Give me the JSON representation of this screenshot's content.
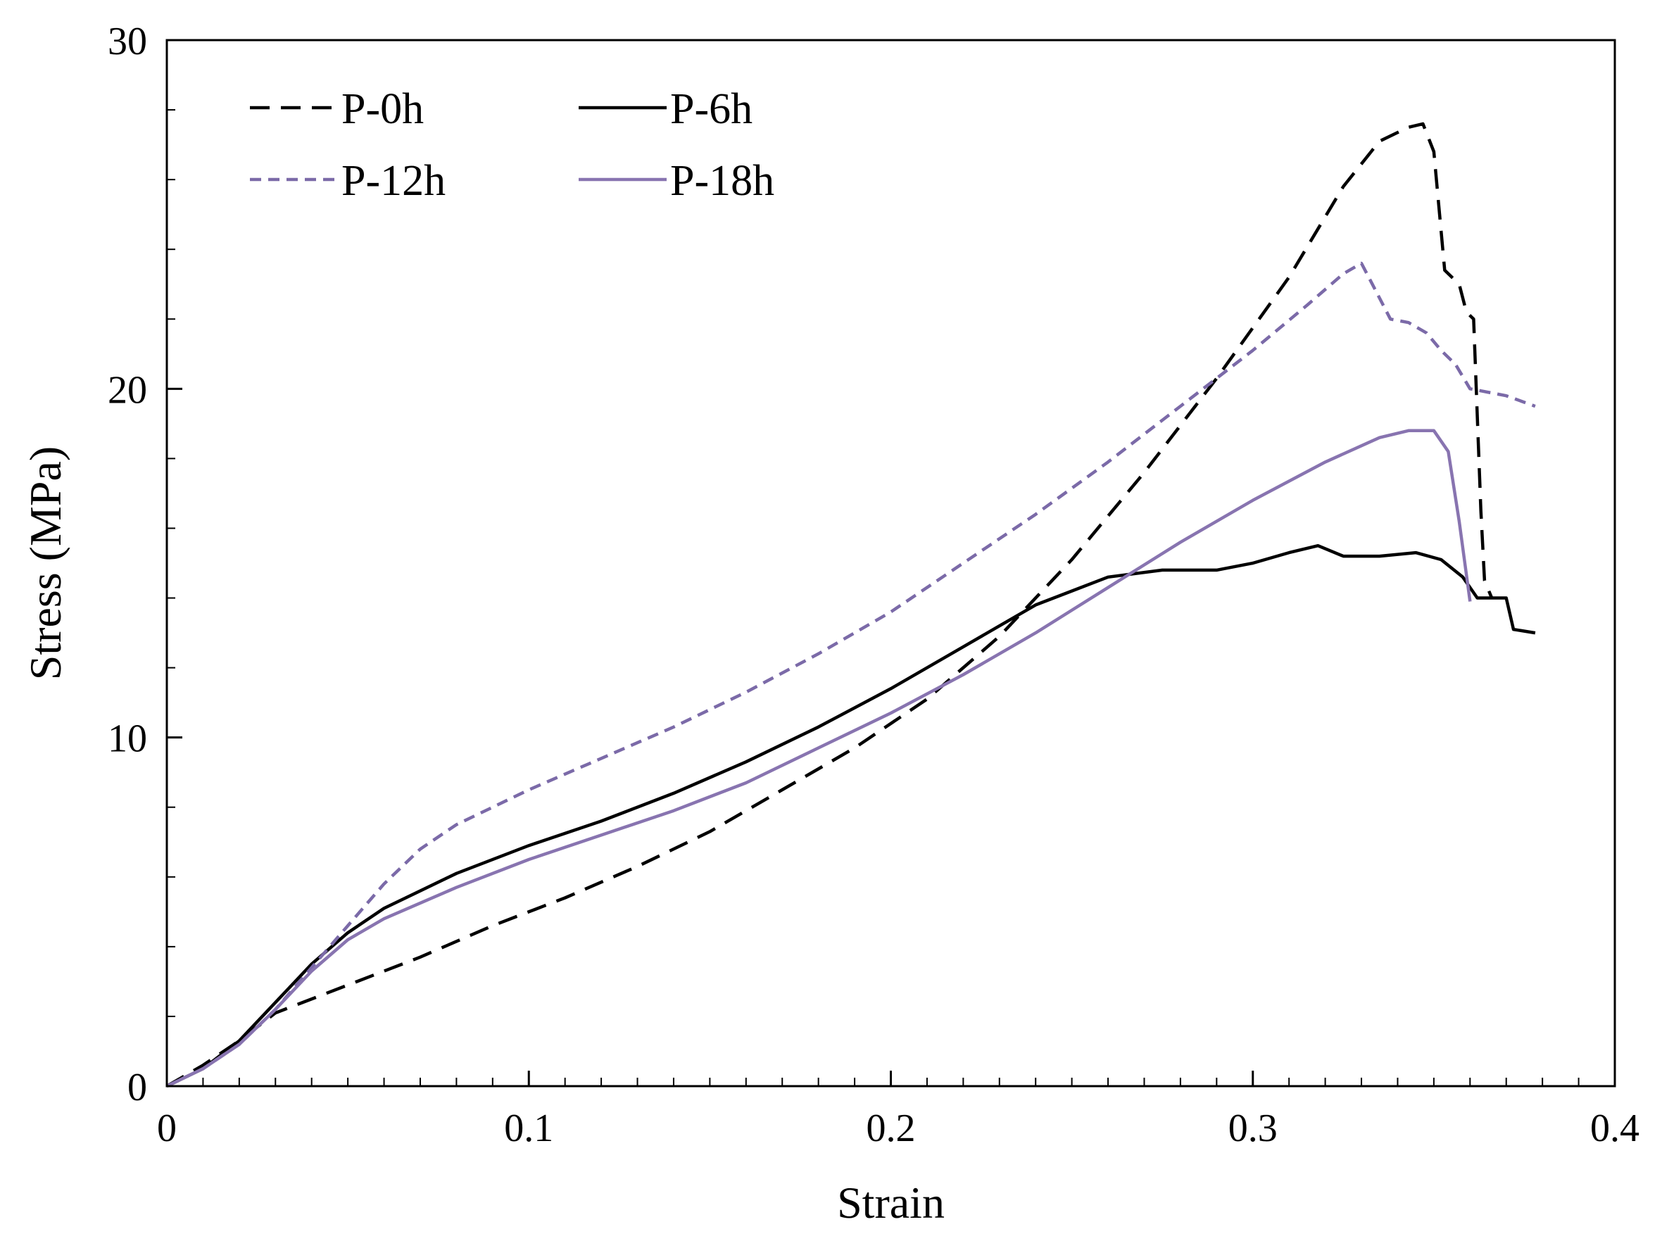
{
  "chart_data": {
    "type": "line",
    "title": "",
    "xlabel": "Strain",
    "ylabel": "Stress (MPa)",
    "xlim": [
      0,
      0.4
    ],
    "ylim": [
      0,
      30
    ],
    "x_ticks": [
      {
        "value": 0,
        "label": "0"
      },
      {
        "value": 0.1,
        "label": "0.1"
      },
      {
        "value": 0.2,
        "label": "0.2"
      },
      {
        "value": 0.3,
        "label": "0.3"
      },
      {
        "value": 0.4,
        "label": "0.4"
      }
    ],
    "y_ticks": [
      {
        "value": 0,
        "label": "0"
      },
      {
        "value": 10,
        "label": "10"
      },
      {
        "value": 20,
        "label": "20"
      },
      {
        "value": 30,
        "label": "30"
      }
    ],
    "x_minor_step": 0.01,
    "y_minor_step": 2,
    "grid": false,
    "legend_position": "top-left",
    "series": [
      {
        "name": "P-0h",
        "color": "#000000",
        "style": "dashed",
        "points": [
          [
            0,
            0
          ],
          [
            0.01,
            0.6
          ],
          [
            0.02,
            1.3
          ],
          [
            0.03,
            2.1
          ],
          [
            0.05,
            2.9
          ],
          [
            0.07,
            3.7
          ],
          [
            0.09,
            4.6
          ],
          [
            0.11,
            5.4
          ],
          [
            0.13,
            6.3
          ],
          [
            0.15,
            7.3
          ],
          [
            0.17,
            8.5
          ],
          [
            0.19,
            9.7
          ],
          [
            0.21,
            11.1
          ],
          [
            0.23,
            12.9
          ],
          [
            0.25,
            15.1
          ],
          [
            0.27,
            17.6
          ],
          [
            0.29,
            20.3
          ],
          [
            0.31,
            23.2
          ],
          [
            0.325,
            25.8
          ],
          [
            0.335,
            27.1
          ],
          [
            0.343,
            27.5
          ],
          [
            0.347,
            27.6
          ],
          [
            0.35,
            26.8
          ],
          [
            0.353,
            23.4
          ],
          [
            0.357,
            23.0
          ],
          [
            0.359,
            22.2
          ],
          [
            0.361,
            22.0
          ],
          [
            0.363,
            16.5
          ],
          [
            0.364,
            14.5
          ],
          [
            0.366,
            14.0
          ]
        ]
      },
      {
        "name": "P-6h",
        "color": "#000000",
        "style": "solid",
        "points": [
          [
            0,
            0
          ],
          [
            0.01,
            0.5
          ],
          [
            0.02,
            1.3
          ],
          [
            0.03,
            2.4
          ],
          [
            0.04,
            3.5
          ],
          [
            0.05,
            4.4
          ],
          [
            0.06,
            5.1
          ],
          [
            0.08,
            6.1
          ],
          [
            0.1,
            6.9
          ],
          [
            0.12,
            7.6
          ],
          [
            0.14,
            8.4
          ],
          [
            0.16,
            9.3
          ],
          [
            0.18,
            10.3
          ],
          [
            0.2,
            11.4
          ],
          [
            0.22,
            12.6
          ],
          [
            0.24,
            13.8
          ],
          [
            0.26,
            14.6
          ],
          [
            0.275,
            14.8
          ],
          [
            0.29,
            14.8
          ],
          [
            0.3,
            15.0
          ],
          [
            0.31,
            15.3
          ],
          [
            0.318,
            15.5
          ],
          [
            0.325,
            15.2
          ],
          [
            0.335,
            15.2
          ],
          [
            0.345,
            15.3
          ],
          [
            0.352,
            15.1
          ],
          [
            0.358,
            14.6
          ],
          [
            0.362,
            14.0
          ],
          [
            0.37,
            14.0
          ],
          [
            0.372,
            13.1
          ],
          [
            0.378,
            13.0
          ]
        ]
      },
      {
        "name": "P-12h",
        "color": "#7b6aa8",
        "style": "dashed",
        "points": [
          [
            0,
            0
          ],
          [
            0.01,
            0.5
          ],
          [
            0.02,
            1.2
          ],
          [
            0.03,
            2.2
          ],
          [
            0.04,
            3.4
          ],
          [
            0.05,
            4.6
          ],
          [
            0.06,
            5.8
          ],
          [
            0.07,
            6.8
          ],
          [
            0.08,
            7.5
          ],
          [
            0.1,
            8.5
          ],
          [
            0.12,
            9.4
          ],
          [
            0.14,
            10.3
          ],
          [
            0.16,
            11.3
          ],
          [
            0.18,
            12.4
          ],
          [
            0.2,
            13.6
          ],
          [
            0.22,
            15.0
          ],
          [
            0.24,
            16.4
          ],
          [
            0.26,
            17.9
          ],
          [
            0.28,
            19.5
          ],
          [
            0.3,
            21.1
          ],
          [
            0.315,
            22.4
          ],
          [
            0.325,
            23.3
          ],
          [
            0.33,
            23.6
          ],
          [
            0.333,
            23.0
          ],
          [
            0.338,
            22.0
          ],
          [
            0.343,
            21.9
          ],
          [
            0.348,
            21.6
          ],
          [
            0.352,
            21.1
          ],
          [
            0.356,
            20.7
          ],
          [
            0.36,
            20.0
          ],
          [
            0.37,
            19.8
          ],
          [
            0.378,
            19.5
          ]
        ]
      },
      {
        "name": "P-18h",
        "color": "#8874b0",
        "style": "solid",
        "points": [
          [
            0,
            0
          ],
          [
            0.01,
            0.5
          ],
          [
            0.02,
            1.2
          ],
          [
            0.03,
            2.2
          ],
          [
            0.04,
            3.3
          ],
          [
            0.05,
            4.2
          ],
          [
            0.06,
            4.8
          ],
          [
            0.08,
            5.7
          ],
          [
            0.1,
            6.5
          ],
          [
            0.12,
            7.2
          ],
          [
            0.14,
            7.9
          ],
          [
            0.16,
            8.7
          ],
          [
            0.18,
            9.7
          ],
          [
            0.2,
            10.7
          ],
          [
            0.22,
            11.8
          ],
          [
            0.24,
            13.0
          ],
          [
            0.26,
            14.3
          ],
          [
            0.28,
            15.6
          ],
          [
            0.3,
            16.8
          ],
          [
            0.32,
            17.9
          ],
          [
            0.335,
            18.6
          ],
          [
            0.343,
            18.8
          ],
          [
            0.35,
            18.8
          ],
          [
            0.354,
            18.2
          ],
          [
            0.357,
            16.2
          ],
          [
            0.36,
            13.9
          ]
        ]
      }
    ]
  }
}
